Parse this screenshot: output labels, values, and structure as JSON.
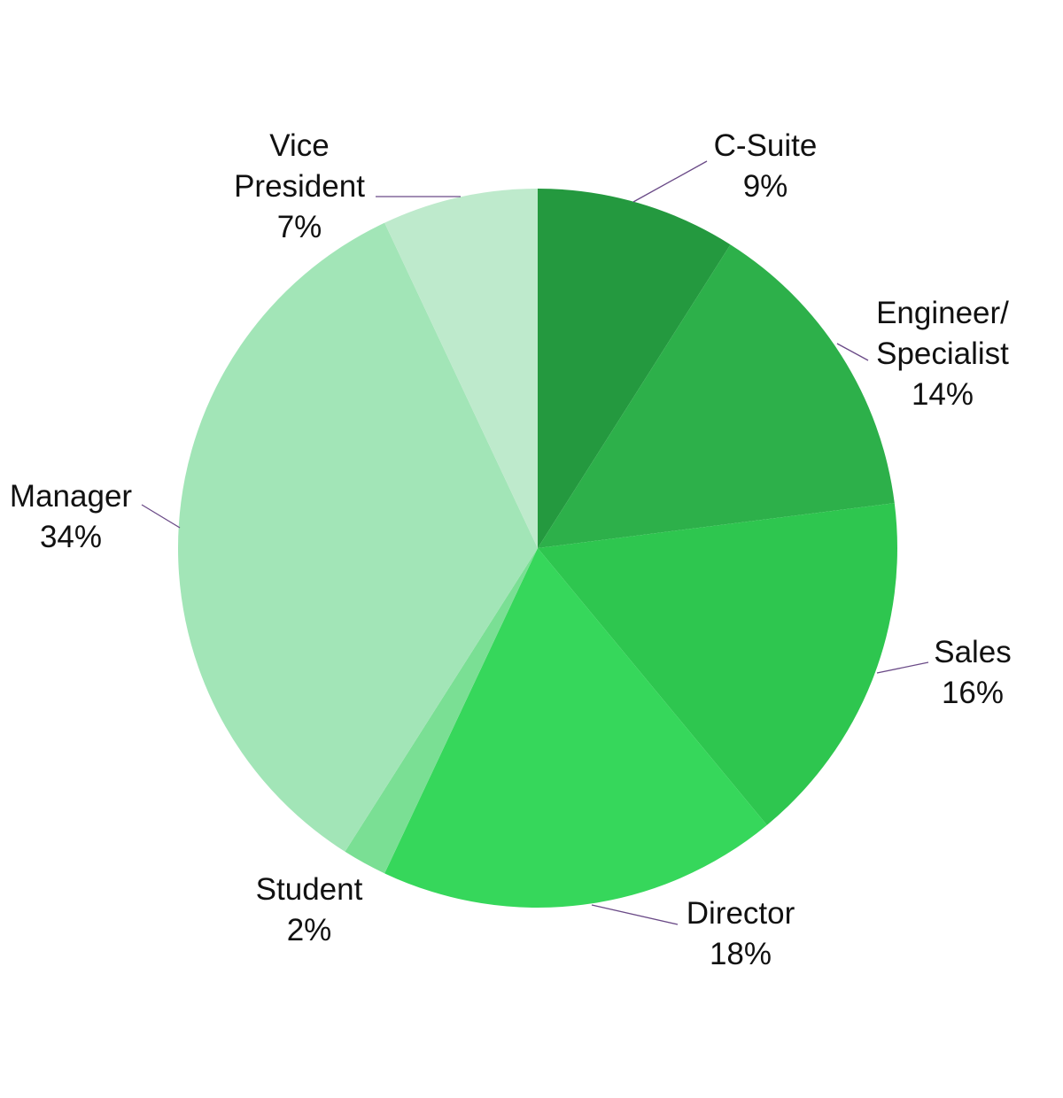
{
  "chart_data": {
    "type": "pie",
    "title": "",
    "start_angle_deg": 0,
    "direction": "clockwise",
    "leader_line_color": "#6a4a87",
    "slices": [
      {
        "name": "C-Suite",
        "label_lines": [
          "C-Suite"
        ],
        "value": 9,
        "value_label": "9%",
        "color": "#24993f"
      },
      {
        "name": "Engineer/ Specialist",
        "label_lines": [
          "Engineer/",
          "Specialist"
        ],
        "value": 14,
        "value_label": "14%",
        "color": "#2db04a"
      },
      {
        "name": "Sales",
        "label_lines": [
          "Sales"
        ],
        "value": 16,
        "value_label": "16%",
        "color": "#2ec64f"
      },
      {
        "name": "Director",
        "label_lines": [
          "Director"
        ],
        "value": 18,
        "value_label": "18%",
        "color": "#36d75b"
      },
      {
        "name": "Student",
        "label_lines": [
          "Student"
        ],
        "value": 2,
        "value_label": "2%",
        "color": "#7adf94"
      },
      {
        "name": "Manager",
        "label_lines": [
          "Manager"
        ],
        "value": 34,
        "value_label": "34%",
        "color": "#a2e5b7"
      },
      {
        "name": "Vice President",
        "label_lines": [
          "Vice",
          "President"
        ],
        "value": 7,
        "value_label": "7%",
        "color": "#beeacc"
      }
    ]
  }
}
